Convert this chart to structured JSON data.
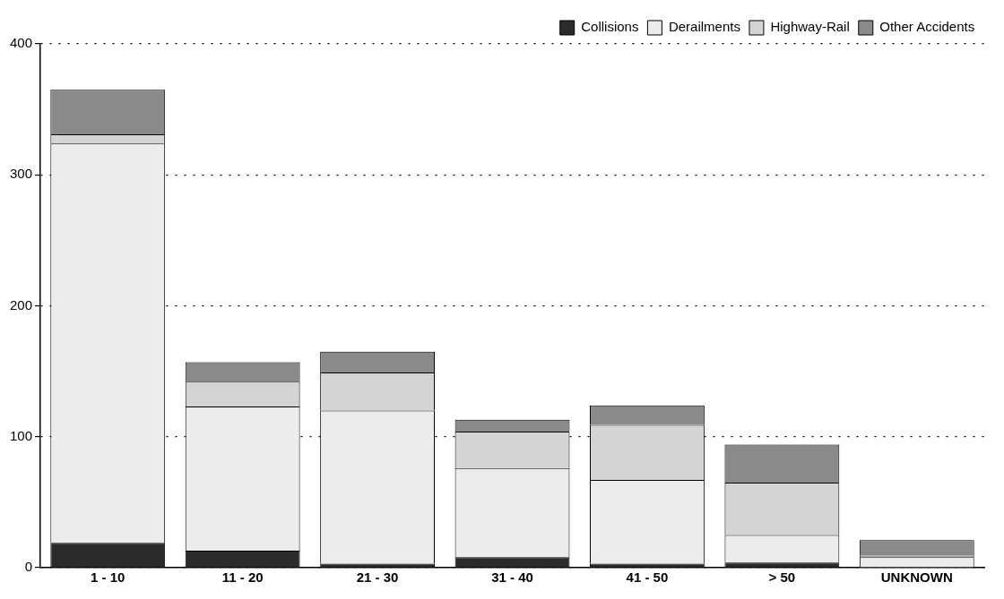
{
  "chart_data": {
    "type": "bar",
    "stacked": true,
    "categories": [
      "1 - 10",
      "11 - 20",
      "21 - 30",
      "31 - 40",
      "41 - 50",
      "> 50",
      "UNKNOWN"
    ],
    "series": [
      {
        "name": "Collisions",
        "color": "#2b2b2b",
        "values": [
          19,
          13,
          3,
          8,
          3,
          4,
          0
        ]
      },
      {
        "name": "Derailments",
        "color": "#ececec",
        "values": [
          305,
          110,
          117,
          68,
          64,
          21,
          8
        ]
      },
      {
        "name": "Highway-Rail",
        "color": "#d4d4d4",
        "values": [
          7,
          19,
          29,
          28,
          42,
          40,
          1
        ]
      },
      {
        "name": "Other Accidents",
        "color": "#8a8a8a",
        "values": [
          34,
          15,
          16,
          9,
          15,
          29,
          12
        ]
      }
    ],
    "ylim": [
      0,
      400
    ],
    "yticks": [
      0,
      100,
      200,
      300,
      400
    ],
    "grid": "y",
    "legend": "top right"
  }
}
